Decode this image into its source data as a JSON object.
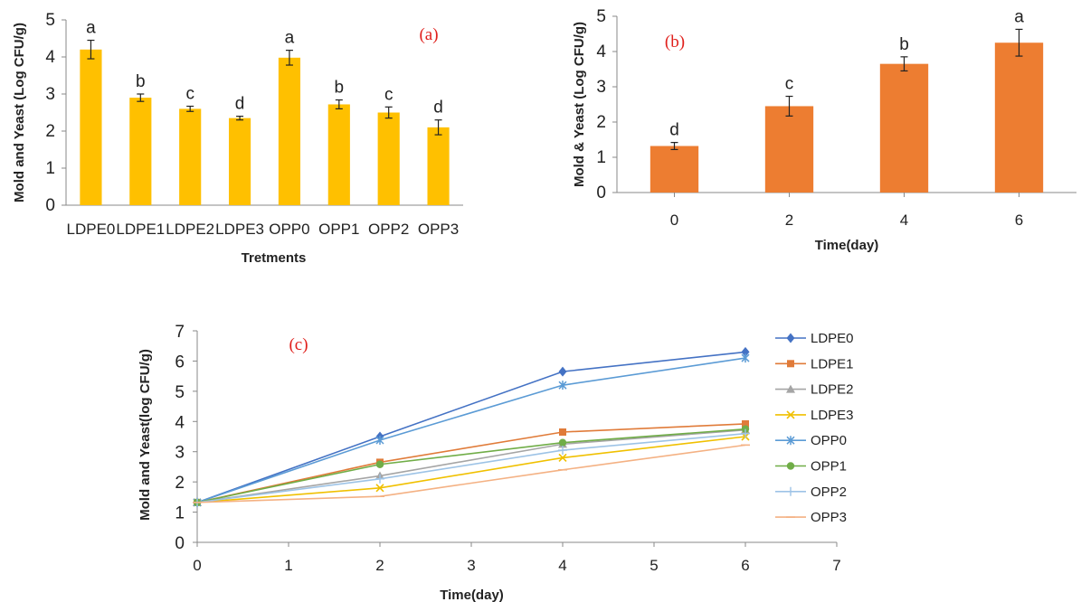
{
  "chart_data": [
    {
      "type": "bar",
      "panel_label": "(a)",
      "xlabel": "Tretments",
      "ylabel": "Mold and Yeast (Log CFU/g)",
      "categories": [
        "LDPE0",
        "LDPE1",
        "LDPE2",
        "LDPE3",
        "OPP0",
        "OPP1",
        "OPP2",
        "OPP3"
      ],
      "values": [
        4.2,
        2.9,
        2.6,
        2.35,
        3.98,
        2.72,
        2.5,
        2.1
      ],
      "errors": [
        0.25,
        0.1,
        0.07,
        0.05,
        0.2,
        0.12,
        0.15,
        0.2
      ],
      "significance": [
        "a",
        "b",
        "c",
        "d",
        "a",
        "b",
        "c",
        "d"
      ],
      "ylim": [
        0,
        5
      ],
      "yticks": [
        0,
        1,
        2,
        3,
        4,
        5
      ],
      "color": "#ffc000",
      "grid": false
    },
    {
      "type": "bar",
      "panel_label": "(b)",
      "xlabel": "Time(day)",
      "ylabel": "Mold & Yeast (Log CFU/g)",
      "categories": [
        "0",
        "2",
        "4",
        "6"
      ],
      "values": [
        1.32,
        2.45,
        3.65,
        4.25
      ],
      "errors": [
        0.1,
        0.28,
        0.2,
        0.38
      ],
      "significance": [
        "d",
        "c",
        "b",
        "a"
      ],
      "ylim": [
        0,
        5
      ],
      "yticks": [
        0,
        1,
        2,
        3,
        4,
        5
      ],
      "color": "#ed7d31",
      "grid": false
    },
    {
      "type": "line",
      "panel_label": "(c)",
      "xlabel": "Time(day)",
      "ylabel": "Mold and Yeast(log CFU/g)",
      "x": [
        0,
        2,
        4,
        6
      ],
      "xlim": [
        0,
        7
      ],
      "xticks": [
        0,
        1,
        2,
        3,
        4,
        5,
        6,
        7
      ],
      "ylim": [
        0,
        7
      ],
      "yticks": [
        0,
        1,
        2,
        3,
        4,
        5,
        6,
        7
      ],
      "legend_position": "right",
      "grid": false,
      "series": [
        {
          "name": "LDPE0",
          "values": [
            1.32,
            3.5,
            5.65,
            6.3
          ],
          "color": "#4472c4",
          "marker": "diamond"
        },
        {
          "name": "LDPE1",
          "values": [
            1.32,
            2.65,
            3.65,
            3.92
          ],
          "color": "#e07b39",
          "marker": "square"
        },
        {
          "name": "LDPE2",
          "values": [
            1.32,
            2.2,
            3.25,
            3.72
          ],
          "color": "#a5a5a5",
          "marker": "triangle"
        },
        {
          "name": "LDPE3",
          "values": [
            1.32,
            1.8,
            2.8,
            3.5
          ],
          "color": "#f0c000",
          "marker": "x"
        },
        {
          "name": "OPP0",
          "values": [
            1.32,
            3.38,
            5.2,
            6.1
          ],
          "color": "#5b9bd5",
          "marker": "star"
        },
        {
          "name": "OPP1",
          "values": [
            1.32,
            2.58,
            3.3,
            3.75
          ],
          "color": "#70ad47",
          "marker": "circle"
        },
        {
          "name": "OPP2",
          "values": [
            1.32,
            2.1,
            3.05,
            3.6
          ],
          "color": "#9dc3e6",
          "marker": "plus"
        },
        {
          "name": "OPP3",
          "values": [
            1.32,
            1.52,
            2.4,
            3.22
          ],
          "color": "#f4b183",
          "marker": "dash"
        }
      ]
    }
  ]
}
